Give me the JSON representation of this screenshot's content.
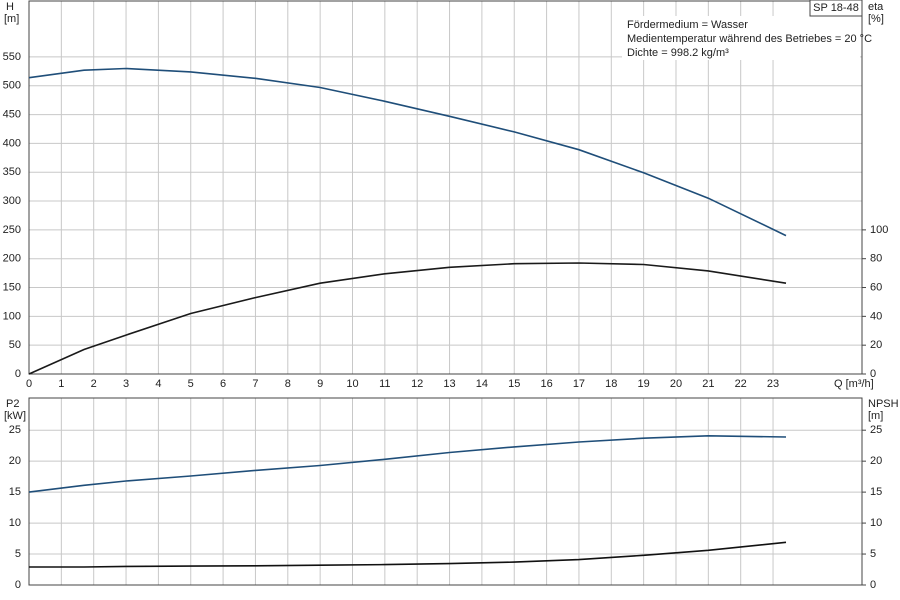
{
  "chart_data": [
    {
      "type": "line",
      "title": "SP 18-48",
      "annotations": [
        "Fördermedium = Wasser",
        "Medientemperatur während des Betriebes = 20 °C",
        "Dichte = 998.2 kg/m³"
      ],
      "y_label": "H",
      "y_unit": "[m]",
      "y2_label": "eta",
      "y2_unit": "[%]",
      "x_label": "Q [m³/h]",
      "x": [
        0,
        1.7,
        3,
        5,
        7,
        9,
        11,
        13,
        15,
        17,
        19,
        21,
        23.4
      ],
      "xlim": [
        0,
        25.75
      ],
      "xticks": [
        0,
        1,
        2,
        3,
        4,
        5,
        6,
        7,
        8,
        9,
        10,
        11,
        12,
        13,
        14,
        15,
        16,
        17,
        18,
        19,
        20,
        21,
        22,
        23
      ],
      "xtick_labels": true,
      "ylim": [
        0,
        647
      ],
      "yticks": [
        0,
        50,
        100,
        150,
        200,
        250,
        300,
        350,
        400,
        450,
        500,
        550
      ],
      "y2lim": [
        0,
        258.8
      ],
      "y2ticks": [
        0,
        20,
        40,
        60,
        80,
        100
      ],
      "grid": true,
      "series": [
        {
          "name": "H",
          "color": "#1f4e79",
          "values": [
            514,
            527,
            530,
            524,
            513,
            497,
            473,
            447,
            420,
            389,
            349,
            305,
            240
          ]
        },
        {
          "name": "eta",
          "color": "#1a1a1a",
          "axis": "y2",
          "values": [
            0,
            17,
            27,
            42,
            53,
            63,
            69.5,
            74,
            76.5,
            77,
            76,
            71.5,
            63
          ]
        }
      ]
    },
    {
      "type": "line",
      "y_label": "P2",
      "y_unit": "[kW]",
      "y2_label": "NPSH",
      "y2_unit": "[m]",
      "x": [
        0,
        1.7,
        3,
        5,
        7,
        9,
        11,
        13,
        15,
        17,
        19,
        21,
        23.4
      ],
      "xlim": [
        0,
        25.75
      ],
      "xticks": [
        0,
        1,
        2,
        3,
        4,
        5,
        6,
        7,
        8,
        9,
        10,
        11,
        12,
        13,
        14,
        15,
        16,
        17,
        18,
        19,
        20,
        21,
        22,
        23
      ],
      "xtick_labels": false,
      "ylim": [
        0,
        30.2
      ],
      "yticks": [
        0,
        5,
        10,
        15,
        20,
        25
      ],
      "y2lim": [
        0,
        30.2
      ],
      "y2ticks": [
        0,
        5,
        10,
        15,
        20,
        25
      ],
      "grid": true,
      "series": [
        {
          "name": "P2",
          "color": "#1f4e79",
          "values": [
            15.0,
            16.1,
            16.8,
            17.6,
            18.5,
            19.3,
            20.3,
            21.4,
            22.3,
            23.1,
            23.7,
            24.1,
            23.9
          ]
        },
        {
          "name": "NPSH",
          "color": "#111111",
          "axis": "y2",
          "values": [
            2.9,
            2.9,
            3.0,
            3.05,
            3.1,
            3.2,
            3.3,
            3.45,
            3.7,
            4.1,
            4.8,
            5.6,
            6.9
          ]
        }
      ]
    }
  ]
}
